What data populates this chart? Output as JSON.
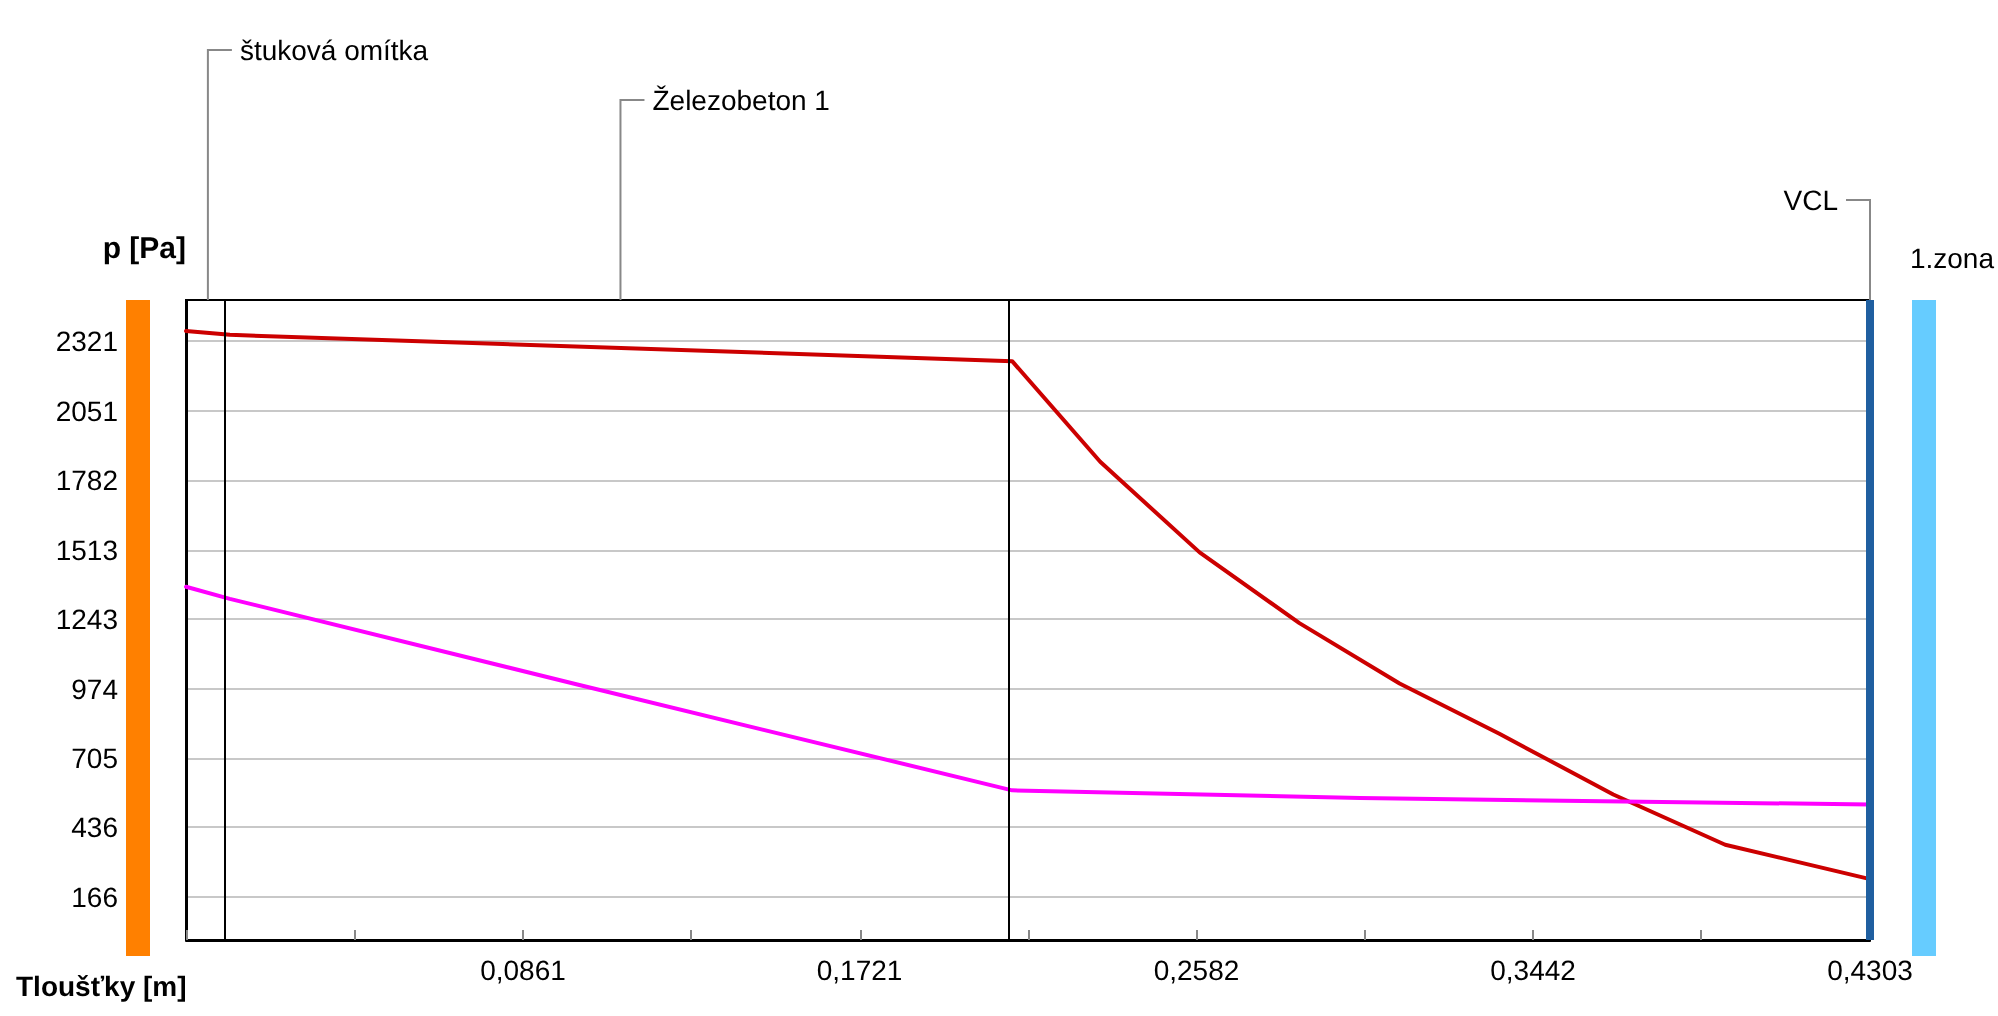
{
  "chart_data": {
    "type": "line",
    "xlabel": "Tloušťky [m]",
    "ylabel": "p [Pa]",
    "series": [
      {
        "color": "#cc0000",
        "x": [
          0,
          0.0112,
          0.2111,
          0.2336,
          0.259,
          0.2845,
          0.3101,
          0.3356,
          0.3647,
          0.3933,
          0.4303
        ],
        "values": [
          2360,
          2345,
          2243,
          1853,
          1502,
          1228,
          994,
          799,
          564,
          369,
          236
        ]
      },
      {
        "color": "#ff00ff",
        "x": [
          0,
          0.0112,
          0.1,
          0.2111,
          0.3,
          0.4303
        ],
        "values": [
          1369,
          1322,
          990,
          580,
          550,
          525
        ]
      }
    ],
    "xlim": [
      0,
      0.4303
    ],
    "ylim": [
      0,
      2480
    ],
    "xticks": [
      {
        "value": 0,
        "label": null
      },
      {
        "value": 0.043,
        "label": null
      },
      {
        "value": 0.0861,
        "label": "0,0861"
      },
      {
        "value": 0.1291,
        "label": null
      },
      {
        "value": 0.1721,
        "label": "0,1721"
      },
      {
        "value": 0.2151,
        "label": null
      },
      {
        "value": 0.2582,
        "label": "0,2582"
      },
      {
        "value": 0.3012,
        "label": null
      },
      {
        "value": 0.3442,
        "label": "0,3442"
      },
      {
        "value": 0.3872,
        "label": null
      },
      {
        "value": 0.4303,
        "label": "0,4303"
      }
    ],
    "yticks": [
      166,
      436,
      705,
      974,
      1243,
      1513,
      1782,
      2051,
      2321
    ],
    "grid": "y",
    "marker": "none",
    "line_style": "solid",
    "ref_lines": [
      {
        "axis": "x",
        "value": 0.0112,
        "color": "#000000"
      },
      {
        "axis": "x",
        "value": 0.2111,
        "color": "#000000"
      },
      {
        "axis": "x",
        "value": 0.4303,
        "color": "#1f5fa0"
      }
    ],
    "annotations": [
      "štuková omítka",
      "Železobeton 1",
      "VCL",
      "1.zona"
    ]
  }
}
